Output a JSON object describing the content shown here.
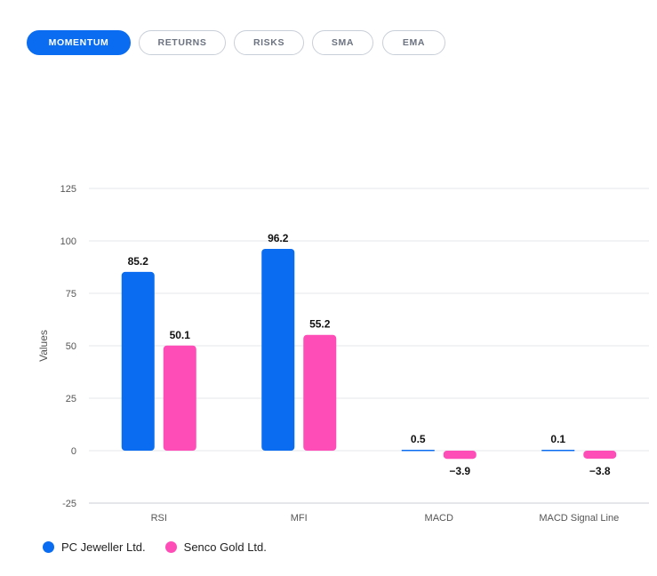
{
  "tabs": [
    {
      "label": "MOMENTUM",
      "active": true
    },
    {
      "label": "RETURNS",
      "active": false
    },
    {
      "label": "RISKS",
      "active": false
    },
    {
      "label": "SMA",
      "active": false
    },
    {
      "label": "EMA",
      "active": false
    }
  ],
  "colors": {
    "accent": "#0a6cf0",
    "series1": "#0a6cf0",
    "series2": "#ff4db8",
    "grid": "#e5e7eb",
    "axis_text": "#555555"
  },
  "chart_data": {
    "type": "bar",
    "categories": [
      "RSI",
      "MFI",
      "MACD",
      "MACD Signal Line"
    ],
    "series": [
      {
        "name": "PC Jeweller Ltd.",
        "values": [
          85.2,
          96.2,
          0.5,
          0.1
        ],
        "labels": [
          "85.2",
          "96.2",
          "0.5",
          "0.1"
        ]
      },
      {
        "name": "Senco Gold Ltd.",
        "values": [
          50.1,
          55.2,
          -3.9,
          -3.8
        ],
        "labels": [
          "50.1",
          "55.2",
          "−3.9",
          "−3.8"
        ]
      }
    ],
    "ylabel": "Values",
    "xlabel": "",
    "ylim": [
      -25,
      125
    ],
    "yticks": [
      -25,
      0,
      25,
      50,
      75,
      100,
      125
    ],
    "grid": true,
    "legend_position": "bottom-left"
  }
}
